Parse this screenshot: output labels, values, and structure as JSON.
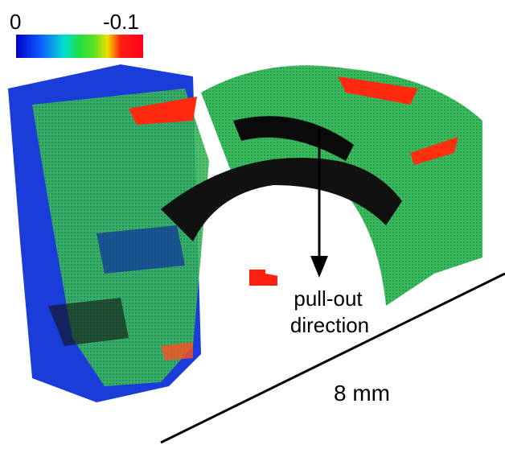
{
  "colorbar": {
    "min_label": "0",
    "max_label": "-0.1"
  },
  "annotation": {
    "lines": [
      "pull-out",
      "direction"
    ]
  },
  "scale_bar": {
    "label": "8 mm"
  }
}
